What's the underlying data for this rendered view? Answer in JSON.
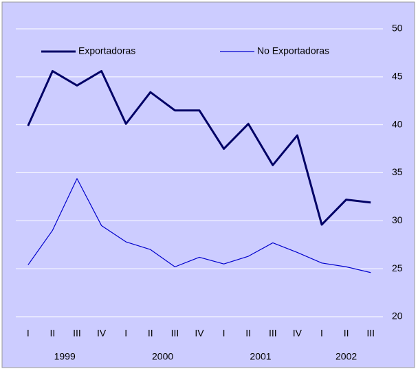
{
  "chart_data": {
    "type": "line",
    "categories": [
      "I",
      "II",
      "III",
      "IV",
      "I",
      "II",
      "III",
      "IV",
      "I",
      "II",
      "III",
      "IV",
      "I",
      "II",
      "III"
    ],
    "category_groups": [
      {
        "name": "1999",
        "count": 4
      },
      {
        "name": "2000",
        "count": 4
      },
      {
        "name": "2001",
        "count": 4
      },
      {
        "name": "2002",
        "count": 3
      }
    ],
    "series": [
      {
        "name": "Exportadoras",
        "color": "#000066",
        "width": 3,
        "values": [
          39.9,
          45.6,
          44.1,
          45.6,
          40.1,
          43.4,
          41.5,
          41.5,
          37.5,
          40.1,
          35.8,
          38.9,
          29.6,
          32.2,
          31.9
        ]
      },
      {
        "name": "No Exportadoras",
        "color": "#0000cc",
        "width": 1.2,
        "values": [
          25.4,
          29.0,
          34.4,
          29.5,
          27.8,
          27.0,
          25.2,
          26.2,
          25.5,
          26.3,
          27.7,
          26.7,
          25.6,
          25.2,
          24.6
        ]
      }
    ],
    "ylim": [
      20,
      50
    ],
    "yticks": [
      20,
      25,
      30,
      35,
      40,
      45,
      50
    ],
    "grid": true,
    "legend": "top"
  }
}
